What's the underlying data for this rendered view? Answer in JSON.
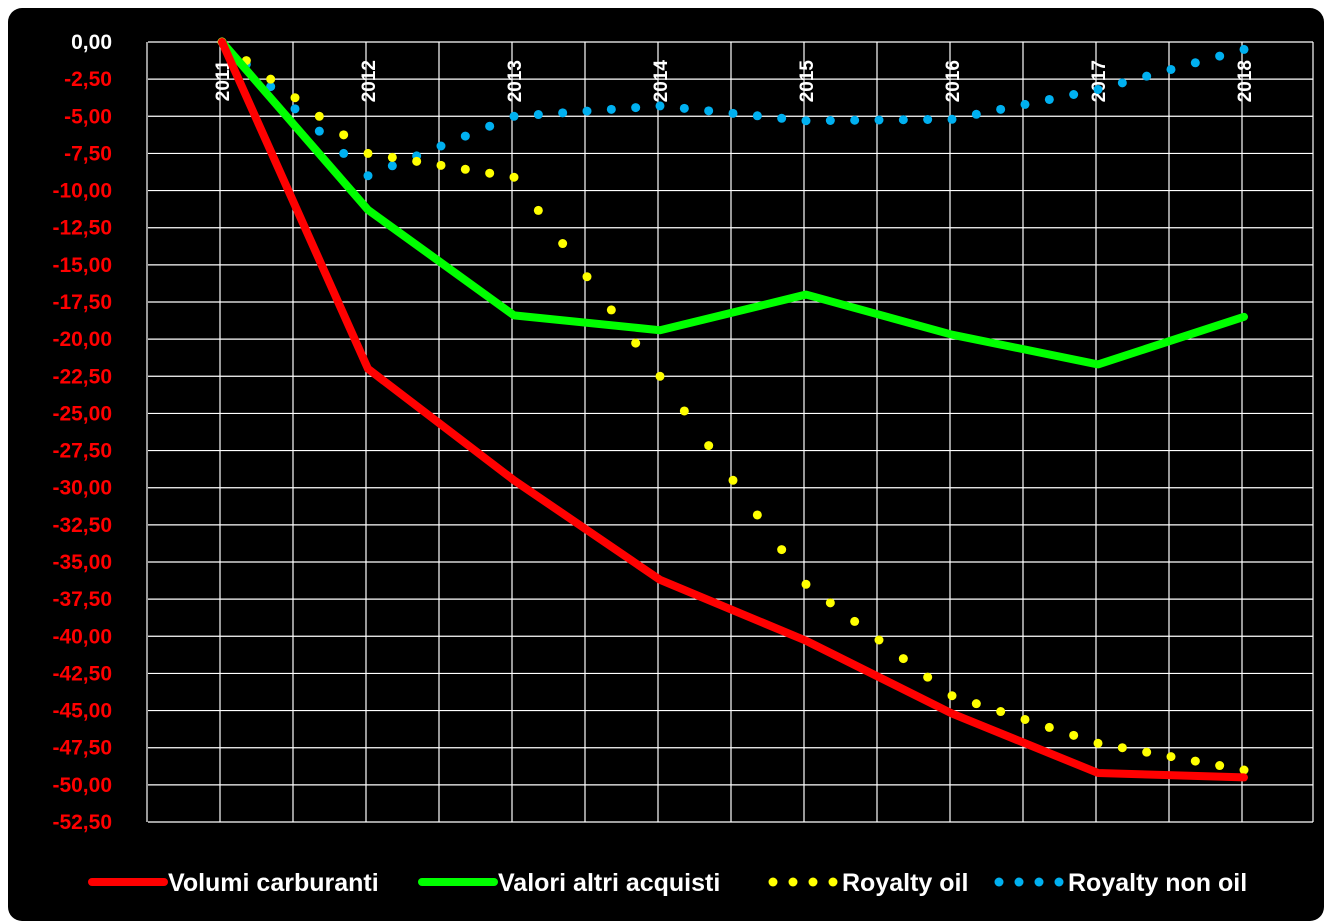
{
  "chart_data": {
    "type": "line",
    "x": [
      "2011",
      "2012",
      "2013",
      "2014",
      "2015",
      "2016",
      "2017",
      "2018"
    ],
    "ylim": [
      -52.5,
      0
    ],
    "ytick_step": 2.5,
    "grid": true,
    "legend_position": "bottom",
    "series": [
      {
        "name": "Volumi carburanti",
        "values": [
          0,
          -22.0,
          -29.5,
          -36.2,
          -40.3,
          -45.2,
          -49.2,
          -49.5
        ],
        "color": "#ff0000",
        "style": "solid"
      },
      {
        "name": "Valori altri acquisti",
        "values": [
          0,
          -11.3,
          -18.4,
          -19.4,
          -17.0,
          -19.7,
          -21.7,
          -18.5
        ],
        "color": "#00ff00",
        "style": "solid"
      },
      {
        "name": "Royalty oil",
        "values": [
          0,
          -7.5,
          -9.1,
          -22.5,
          -36.5,
          -44.0,
          -47.2,
          -49.0
        ],
        "color": "#ffff00",
        "style": "dotted"
      },
      {
        "name": "Royalty non oil",
        "values": [
          0,
          -9.0,
          -5.0,
          -4.3,
          -5.3,
          -5.2,
          -3.2,
          -0.5
        ],
        "color": "#00b0f0",
        "style": "dotted"
      }
    ],
    "ytick_labels": [
      "0,00",
      "-2,50",
      "-5,00",
      "-7,50",
      "-10,00",
      "-12,50",
      "-15,00",
      "-17,50",
      "-20,00",
      "-22,50",
      "-25,00",
      "-27,50",
      "-30,00",
      "-32,50",
      "-35,00",
      "-37,50",
      "-40,00",
      "-42,50",
      "-45,00",
      "-47,50",
      "-50,00",
      "-52,50"
    ],
    "ytick_colors": {
      "zero": "#ffffff",
      "negative": "#ff0000"
    },
    "grid_color": "#ffffff"
  }
}
